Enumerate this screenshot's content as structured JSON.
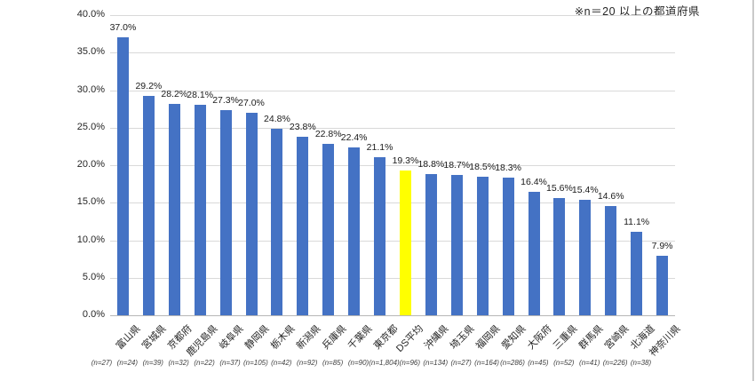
{
  "note": "※n＝20 以上の都道府県",
  "colors": {
    "bar": "#4472C4",
    "highlight": "#FFFF00",
    "gridline": "#D9D9D9",
    "axis_line": "#B7B7B7",
    "text": "#262626",
    "right_border": "#C9C9C9"
  },
  "chart_data": {
    "type": "bar",
    "title": "",
    "xlabel": "",
    "ylabel": "",
    "ylim": [
      0,
      40
    ],
    "ytick_step": 5,
    "ytick_labels": [
      "0.0%",
      "5.0%",
      "10.0%",
      "15.0%",
      "20.0%",
      "25.0%",
      "30.0%",
      "35.0%",
      "40.0%"
    ],
    "grid": true,
    "legend": false,
    "highlight_index": 11,
    "highlight_category": "DS平均",
    "categories": [
      "富山県",
      "宮城県",
      "京都府",
      "鹿児島県",
      "岐阜県",
      "静岡県",
      "栃木県",
      "新潟県",
      "兵庫県",
      "千葉県",
      "東京都",
      "DS平均",
      "沖縄県",
      "埼玉県",
      "福岡県",
      "愛知県",
      "大阪府",
      "三重県",
      "群馬県",
      "宮崎県",
      "北海道",
      "神奈川県"
    ],
    "sample_sizes": [
      "(n=27)",
      "(n=24)",
      "(n=39)",
      "(n=32)",
      "(n=22)",
      "(n=37)",
      "(n=105)",
      "(n=42)",
      "(n=92)",
      "(n=85)",
      "(n=90)",
      "(n=1,804)",
      "(n=96)",
      "(n=134)",
      "(n=27)",
      "(n=164)",
      "(n=286)",
      "(n=45)",
      "(n=52)",
      "(n=41)",
      "(n=226)",
      "(n=38)"
    ],
    "values": [
      37.0,
      29.2,
      28.2,
      28.1,
      27.3,
      27.0,
      24.8,
      23.8,
      22.8,
      22.4,
      21.1,
      19.3,
      18.8,
      18.7,
      18.5,
      18.3,
      16.4,
      15.6,
      15.4,
      14.6,
      11.1,
      7.9
    ],
    "value_labels": [
      "37.0%",
      "29.2%",
      "28.2%",
      "28.1%",
      "27.3%",
      "27.0%",
      "24.8%",
      "23.8%",
      "22.8%",
      "22.4%",
      "21.1%",
      "19.3%",
      "18.8%",
      "18.7%",
      "18.5%",
      "18.3%",
      "16.4%",
      "15.6%",
      "15.4%",
      "14.6%",
      "11.1%",
      "7.9%"
    ]
  }
}
